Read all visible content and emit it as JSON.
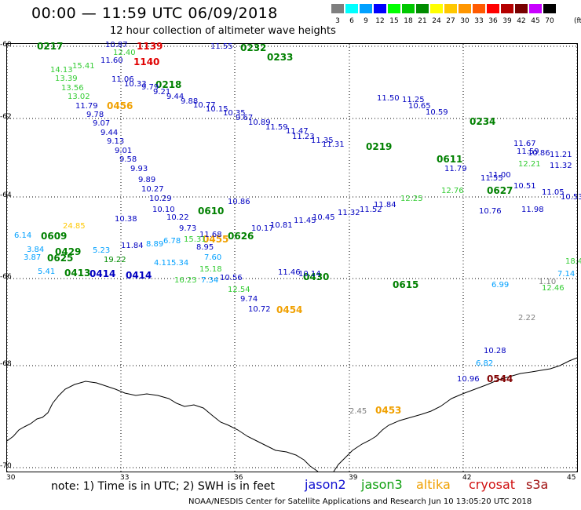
{
  "header": {
    "title": "00:00 — 11:59 UTC 06/09/2018",
    "subtitle": "12 hour collection of altimeter wave heights"
  },
  "legend": {
    "unit": "(ft)",
    "bins": [
      {
        "label": "3",
        "color": "#7f7f7f"
      },
      {
        "label": "6",
        "color": "#00ffff"
      },
      {
        "label": "9",
        "color": "#00a0ff"
      },
      {
        "label": "12",
        "color": "#0000ff"
      },
      {
        "label": "15",
        "color": "#00ff00"
      },
      {
        "label": "18",
        "color": "#00c800"
      },
      {
        "label": "21",
        "color": "#008c00"
      },
      {
        "label": "24",
        "color": "#ffff00"
      },
      {
        "label": "27",
        "color": "#ffc800"
      },
      {
        "label": "30",
        "color": "#ff9600"
      },
      {
        "label": "33",
        "color": "#ff5a00"
      },
      {
        "label": "36",
        "color": "#ff0000"
      },
      {
        "label": "39",
        "color": "#b40000"
      },
      {
        "label": "42",
        "color": "#780000"
      },
      {
        "label": "45",
        "color": "#c800ff"
      },
      {
        "label": "70",
        "color": "#000000"
      }
    ]
  },
  "axes": {
    "lat_ticks": [
      "-60",
      "-62",
      "-64",
      "-66",
      "-68",
      "-70"
    ],
    "lon_ticks": [
      "30",
      "33",
      "36",
      "39",
      "42",
      "45"
    ]
  },
  "footer": {
    "note": "note: 1) Time is in UTC; 2) SWH is in feet",
    "satellites": [
      {
        "name": "jason2",
        "color": "#1010d0"
      },
      {
        "name": "jason3",
        "color": "#10a010"
      },
      {
        "name": "altika",
        "color": "#f0a000"
      },
      {
        "name": "cryosat",
        "color": "#d01010"
      },
      {
        "name": "s3a",
        "color": "#a01010"
      }
    ],
    "credit": "NOAA/NESDIS Center for Satellite Applications and Research    Jun 10 13:05:20 UTC 2018"
  },
  "tracks": {
    "times": [
      {
        "label": "0217",
        "color": "#008000"
      },
      {
        "label": "1139",
        "color": "#e00000"
      },
      {
        "label": "1140",
        "color": "#e00000"
      },
      {
        "label": "0232",
        "color": "#008000"
      },
      {
        "label": "0233",
        "color": "#008000"
      },
      {
        "label": "0218",
        "color": "#008000"
      },
      {
        "label": "0456",
        "color": "#f0a000"
      },
      {
        "label": "0234",
        "color": "#008000"
      },
      {
        "label": "0219",
        "color": "#008000"
      },
      {
        "label": "0611",
        "color": "#008000"
      },
      {
        "label": "0627",
        "color": "#008000"
      },
      {
        "label": "0610",
        "color": "#008000"
      },
      {
        "label": "0609",
        "color": "#008000"
      },
      {
        "label": "0626",
        "color": "#008000"
      },
      {
        "label": "0455",
        "color": "#f0a000"
      },
      {
        "label": "0429",
        "color": "#008000"
      },
      {
        "label": "0625",
        "color": "#008000"
      },
      {
        "label": "0413",
        "color": "#008000"
      },
      {
        "label": "0414",
        "color": "#0000c0"
      },
      {
        "label": "0414",
        "color": "#0000c0"
      },
      {
        "label": "0430",
        "color": "#008000"
      },
      {
        "label": "0454",
        "color": "#f0a000"
      },
      {
        "label": "0615",
        "color": "#008000"
      },
      {
        "label": "0544",
        "color": "#800000"
      },
      {
        "label": "0453",
        "color": "#f0a000"
      }
    ],
    "values": [
      {
        "label": "10.87",
        "color": "#0000c0"
      },
      {
        "label": "12.40",
        "color": "#33cc33"
      },
      {
        "label": "11.60",
        "color": "#0000c0"
      },
      {
        "label": "11.55",
        "color": "#0000c0"
      },
      {
        "label": "11.06",
        "color": "#0000c0"
      },
      {
        "label": "10.33",
        "color": "#0000c0"
      },
      {
        "label": "9.79",
        "color": "#0000c0"
      },
      {
        "label": "9.21",
        "color": "#0000c0"
      },
      {
        "label": "9.44",
        "color": "#0000c0"
      },
      {
        "label": "9.88",
        "color": "#0000c0"
      },
      {
        "label": "10.77",
        "color": "#0000c0"
      },
      {
        "label": "10.15",
        "color": "#0000c0"
      },
      {
        "label": "10.35",
        "color": "#0000c0"
      },
      {
        "label": "9.67",
        "color": "#0000c0"
      },
      {
        "label": "10.89",
        "color": "#0000c0"
      },
      {
        "label": "11.59",
        "color": "#0000c0"
      },
      {
        "label": "11.47",
        "color": "#0000c0"
      },
      {
        "label": "11.23",
        "color": "#0000c0"
      },
      {
        "label": "11.35",
        "color": "#0000c0"
      },
      {
        "label": "11.31",
        "color": "#0000c0"
      },
      {
        "label": "11.79",
        "color": "#0000c0"
      },
      {
        "label": "9.78",
        "color": "#0000c0"
      },
      {
        "label": "9.07",
        "color": "#0000c0"
      },
      {
        "label": "9.44",
        "color": "#0000c0"
      },
      {
        "label": "9.13",
        "color": "#0000c0"
      },
      {
        "label": "9.01",
        "color": "#0000c0"
      },
      {
        "label": "9.58",
        "color": "#0000c0"
      },
      {
        "label": "9.93",
        "color": "#0000c0"
      },
      {
        "label": "9.89",
        "color": "#0000c0"
      },
      {
        "label": "10.27",
        "color": "#0000c0"
      },
      {
        "label": "10.29",
        "color": "#0000c0"
      },
      {
        "label": "10.22",
        "color": "#0000c0"
      },
      {
        "label": "9.73",
        "color": "#0000c0"
      },
      {
        "label": "8.95",
        "color": "#0000c0"
      },
      {
        "label": "7.60",
        "color": "#00a0ff"
      },
      {
        "label": "10.56",
        "color": "#0000c0"
      },
      {
        "label": "9.74",
        "color": "#0000c0"
      },
      {
        "label": "10.72",
        "color": "#0000c0"
      },
      {
        "label": "10.28",
        "color": "#0000c0"
      },
      {
        "label": "6.82",
        "color": "#00a0ff"
      },
      {
        "label": "10.96",
        "color": "#0000c0"
      },
      {
        "label": "2.22",
        "color": "#7f7f7f"
      },
      {
        "label": "2.45",
        "color": "#7f7f7f"
      },
      {
        "label": "11.84",
        "color": "#0000c0"
      },
      {
        "label": "19.22",
        "color": "#008c00"
      },
      {
        "label": "6.14",
        "color": "#00a0ff"
      },
      {
        "label": "3.84",
        "color": "#00a0ff"
      },
      {
        "label": "3.87",
        "color": "#00a0ff"
      },
      {
        "label": "5.41",
        "color": "#00a0ff"
      },
      {
        "label": "5.23",
        "color": "#00a0ff"
      },
      {
        "label": "12.46",
        "color": "#33cc33"
      },
      {
        "label": "7.14",
        "color": "#00a0ff"
      },
      {
        "label": "1.10",
        "color": "#7f7f7f"
      },
      {
        "label": "15.41",
        "color": "#33cc33"
      },
      {
        "label": "14.13",
        "color": "#33cc33"
      },
      {
        "label": "13.39",
        "color": "#33cc33"
      },
      {
        "label": "13.56",
        "color": "#33cc33"
      },
      {
        "label": "13.02",
        "color": "#33cc33"
      },
      {
        "label": "10.86",
        "color": "#0000c0"
      },
      {
        "label": "11.21",
        "color": "#0000c0"
      },
      {
        "label": "10.59",
        "color": "#0000c0"
      },
      {
        "label": "10.65",
        "color": "#0000c0"
      },
      {
        "label": "11.25",
        "color": "#0000c0"
      },
      {
        "label": "11.50",
        "color": "#0000c0"
      },
      {
        "label": "11.55",
        "color": "#0000c0"
      },
      {
        "label": "10.76",
        "color": "#0000c0"
      },
      {
        "label": "11.32",
        "color": "#0000c0"
      },
      {
        "label": "11.05",
        "color": "#0000c0"
      },
      {
        "label": "11.79",
        "color": "#0000c0"
      },
      {
        "label": "11.00",
        "color": "#0000c0"
      },
      {
        "label": "10.51",
        "color": "#0000c0"
      },
      {
        "label": "11.98",
        "color": "#0000c0"
      },
      {
        "label": "11.67",
        "color": "#0000c0"
      },
      {
        "label": "11.59",
        "color": "#0000c0"
      },
      {
        "label": "12.21",
        "color": "#33cc33"
      },
      {
        "label": "12.76",
        "color": "#33cc33"
      },
      {
        "label": "12.25",
        "color": "#33cc33"
      },
      {
        "label": "11.84",
        "color": "#0000c0"
      },
      {
        "label": "11.52",
        "color": "#0000c0"
      },
      {
        "label": "11.32",
        "color": "#0000c0"
      },
      {
        "label": "10.45",
        "color": "#0000c0"
      },
      {
        "label": "11.45",
        "color": "#0000c0"
      },
      {
        "label": "10.81",
        "color": "#0000c0"
      },
      {
        "label": "10.17",
        "color": "#0000c0"
      },
      {
        "label": "11.68",
        "color": "#0000c0"
      },
      {
        "label": "15.31",
        "color": "#33cc33"
      },
      {
        "label": "6.78",
        "color": "#00a0ff"
      },
      {
        "label": "8.89",
        "color": "#00a0ff"
      },
      {
        "label": "11.46",
        "color": "#0000c0"
      },
      {
        "label": "10.14",
        "color": "#0000c0"
      },
      {
        "label": "12.54",
        "color": "#33cc33"
      },
      {
        "label": "4.11",
        "color": "#00a0ff"
      },
      {
        "label": "5.34",
        "color": "#00a0ff"
      },
      {
        "label": "15.18",
        "color": "#33cc33"
      },
      {
        "label": "16.23",
        "color": "#33cc33"
      },
      {
        "label": "7.34",
        "color": "#00a0ff"
      },
      {
        "label": "24.85",
        "color": "#ffc800"
      },
      {
        "label": "10.38",
        "color": "#0000c0"
      },
      {
        "label": "10.10",
        "color": "#0000c0"
      },
      {
        "label": "10.86",
        "color": "#0000c0"
      },
      {
        "label": "6.99",
        "color": "#00a0ff"
      },
      {
        "label": "10.53",
        "color": "#0000c0"
      },
      {
        "label": "18.4",
        "color": "#33cc33"
      }
    ]
  }
}
